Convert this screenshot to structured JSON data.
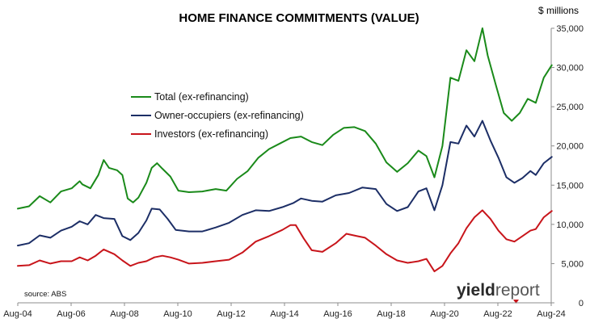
{
  "chart_data": {
    "type": "line",
    "title": "HOME FINANCE COMMITMENTS (VALUE)",
    "unit_label": "$ millions",
    "source": "source: ABS",
    "brand": {
      "part1": "yield",
      "part2": "report"
    },
    "x_ticks": [
      "Aug-04",
      "Aug-06",
      "Aug-08",
      "Aug-10",
      "Aug-12",
      "Aug-14",
      "Aug-16",
      "Aug-18",
      "Aug-20",
      "Aug-22",
      "Aug-24"
    ],
    "y_ticks": [
      "0",
      "5,000",
      "10,000",
      "15,000",
      "20,000",
      "25,000",
      "30,000",
      "35,000"
    ],
    "ylim": [
      0,
      35000
    ],
    "y_axis_position": "right",
    "grid": false,
    "legend_position": "upper-left",
    "series": [
      {
        "name": "Total (ex-refinancing)",
        "color": "#1a8a1a",
        "points": [
          [
            2004.58,
            12000
          ],
          [
            2005.0,
            12300
          ],
          [
            2005.4,
            13600
          ],
          [
            2005.8,
            12800
          ],
          [
            2006.2,
            14200
          ],
          [
            2006.6,
            14600
          ],
          [
            2006.9,
            15500
          ],
          [
            2007.0,
            15100
          ],
          [
            2007.3,
            14600
          ],
          [
            2007.6,
            16300
          ],
          [
            2007.8,
            18200
          ],
          [
            2008.0,
            17200
          ],
          [
            2008.3,
            16900
          ],
          [
            2008.5,
            16300
          ],
          [
            2008.7,
            13300
          ],
          [
            2008.9,
            12800
          ],
          [
            2009.1,
            13400
          ],
          [
            2009.4,
            15300
          ],
          [
            2009.6,
            17200
          ],
          [
            2009.8,
            17800
          ],
          [
            2010.0,
            17100
          ],
          [
            2010.3,
            16100
          ],
          [
            2010.6,
            14300
          ],
          [
            2011.0,
            14100
          ],
          [
            2011.5,
            14200
          ],
          [
            2012.0,
            14500
          ],
          [
            2012.4,
            14300
          ],
          [
            2012.8,
            15800
          ],
          [
            2013.2,
            16800
          ],
          [
            2013.6,
            18500
          ],
          [
            2014.0,
            19600
          ],
          [
            2014.4,
            20300
          ],
          [
            2014.8,
            21000
          ],
          [
            2015.2,
            21200
          ],
          [
            2015.6,
            20500
          ],
          [
            2016.0,
            20100
          ],
          [
            2016.4,
            21400
          ],
          [
            2016.8,
            22300
          ],
          [
            2017.2,
            22400
          ],
          [
            2017.6,
            21900
          ],
          [
            2018.0,
            20300
          ],
          [
            2018.4,
            17900
          ],
          [
            2018.8,
            16700
          ],
          [
            2019.2,
            17800
          ],
          [
            2019.6,
            19400
          ],
          [
            2019.9,
            18700
          ],
          [
            2020.2,
            16000
          ],
          [
            2020.5,
            20000
          ],
          [
            2020.8,
            28700
          ],
          [
            2021.1,
            28300
          ],
          [
            2021.4,
            32200
          ],
          [
            2021.7,
            30800
          ],
          [
            2022.0,
            35000
          ],
          [
            2022.2,
            31500
          ],
          [
            2022.5,
            27800
          ],
          [
            2022.8,
            24200
          ],
          [
            2023.1,
            23200
          ],
          [
            2023.4,
            24200
          ],
          [
            2023.7,
            26000
          ],
          [
            2024.0,
            25500
          ],
          [
            2024.3,
            28700
          ],
          [
            2024.6,
            30300
          ]
        ]
      },
      {
        "name": "Owner-occupiers (ex-refinancing)",
        "color": "#1c2e66",
        "points": [
          [
            2004.58,
            7300
          ],
          [
            2005.0,
            7600
          ],
          [
            2005.4,
            8600
          ],
          [
            2005.8,
            8300
          ],
          [
            2006.2,
            9200
          ],
          [
            2006.6,
            9700
          ],
          [
            2006.9,
            10400
          ],
          [
            2007.2,
            10000
          ],
          [
            2007.5,
            11200
          ],
          [
            2007.8,
            10800
          ],
          [
            2008.2,
            10700
          ],
          [
            2008.5,
            8500
          ],
          [
            2008.8,
            8000
          ],
          [
            2009.1,
            8900
          ],
          [
            2009.4,
            10500
          ],
          [
            2009.6,
            12000
          ],
          [
            2009.9,
            11900
          ],
          [
            2010.2,
            10700
          ],
          [
            2010.5,
            9300
          ],
          [
            2011.0,
            9100
          ],
          [
            2011.5,
            9100
          ],
          [
            2012.0,
            9600
          ],
          [
            2012.5,
            10200
          ],
          [
            2013.0,
            11200
          ],
          [
            2013.5,
            11800
          ],
          [
            2014.0,
            11700
          ],
          [
            2014.5,
            12200
          ],
          [
            2014.9,
            12700
          ],
          [
            2015.2,
            13300
          ],
          [
            2015.6,
            13000
          ],
          [
            2016.0,
            12900
          ],
          [
            2016.5,
            13700
          ],
          [
            2017.0,
            14000
          ],
          [
            2017.5,
            14700
          ],
          [
            2018.0,
            14500
          ],
          [
            2018.4,
            12600
          ],
          [
            2018.8,
            11700
          ],
          [
            2019.2,
            12200
          ],
          [
            2019.6,
            14200
          ],
          [
            2019.9,
            14600
          ],
          [
            2020.2,
            11800
          ],
          [
            2020.5,
            15000
          ],
          [
            2020.8,
            20500
          ],
          [
            2021.1,
            20300
          ],
          [
            2021.4,
            22600
          ],
          [
            2021.7,
            21200
          ],
          [
            2022.0,
            23200
          ],
          [
            2022.3,
            20700
          ],
          [
            2022.6,
            18500
          ],
          [
            2022.9,
            16000
          ],
          [
            2023.2,
            15300
          ],
          [
            2023.5,
            15900
          ],
          [
            2023.8,
            16800
          ],
          [
            2024.0,
            16300
          ],
          [
            2024.3,
            17800
          ],
          [
            2024.6,
            18600
          ]
        ]
      },
      {
        "name": "Investors (ex-refinancing)",
        "color": "#c8151b",
        "points": [
          [
            2004.58,
            4700
          ],
          [
            2005.0,
            4800
          ],
          [
            2005.4,
            5400
          ],
          [
            2005.8,
            5000
          ],
          [
            2006.2,
            5300
          ],
          [
            2006.6,
            5300
          ],
          [
            2006.9,
            5800
          ],
          [
            2007.2,
            5400
          ],
          [
            2007.5,
            6000
          ],
          [
            2007.8,
            6800
          ],
          [
            2008.2,
            6200
          ],
          [
            2008.5,
            5400
          ],
          [
            2008.8,
            4700
          ],
          [
            2009.1,
            5100
          ],
          [
            2009.4,
            5300
          ],
          [
            2009.7,
            5800
          ],
          [
            2010.0,
            6000
          ],
          [
            2010.3,
            5800
          ],
          [
            2010.6,
            5500
          ],
          [
            2011.0,
            5000
          ],
          [
            2011.5,
            5100
          ],
          [
            2012.0,
            5300
          ],
          [
            2012.5,
            5500
          ],
          [
            2013.0,
            6400
          ],
          [
            2013.5,
            7800
          ],
          [
            2014.0,
            8500
          ],
          [
            2014.5,
            9300
          ],
          [
            2014.8,
            9900
          ],
          [
            2015.0,
            9900
          ],
          [
            2015.3,
            8200
          ],
          [
            2015.6,
            6700
          ],
          [
            2016.0,
            6500
          ],
          [
            2016.5,
            7600
          ],
          [
            2016.9,
            8800
          ],
          [
            2017.3,
            8500
          ],
          [
            2017.6,
            8300
          ],
          [
            2018.0,
            7300
          ],
          [
            2018.4,
            6200
          ],
          [
            2018.8,
            5400
          ],
          [
            2019.2,
            5100
          ],
          [
            2019.6,
            5300
          ],
          [
            2019.9,
            5600
          ],
          [
            2020.2,
            4000
          ],
          [
            2020.5,
            4700
          ],
          [
            2020.8,
            6300
          ],
          [
            2021.1,
            7600
          ],
          [
            2021.4,
            9500
          ],
          [
            2021.7,
            10900
          ],
          [
            2022.0,
            11800
          ],
          [
            2022.3,
            10700
          ],
          [
            2022.6,
            9200
          ],
          [
            2022.9,
            8100
          ],
          [
            2023.2,
            7800
          ],
          [
            2023.5,
            8500
          ],
          [
            2023.8,
            9200
          ],
          [
            2024.0,
            9400
          ],
          [
            2024.3,
            10900
          ],
          [
            2024.6,
            11700
          ]
        ]
      }
    ]
  }
}
